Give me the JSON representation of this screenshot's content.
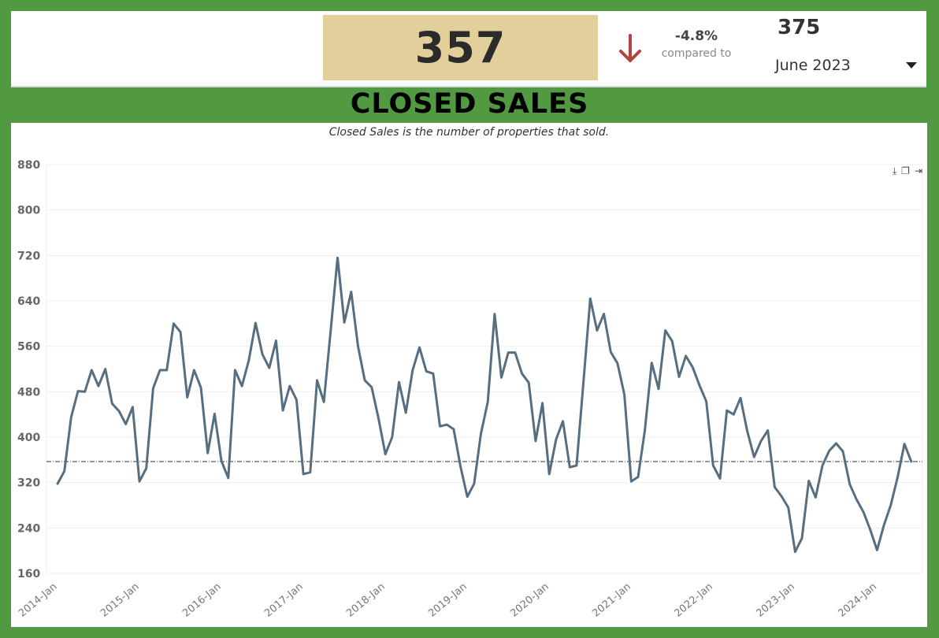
{
  "kpi": {
    "value": "357",
    "change_pct": "-4.8%",
    "change_label": "compared to",
    "compare_value": "375",
    "period": "June 2023",
    "down_color": "#b5443d",
    "value_box_color": "#e3cf9b"
  },
  "title": "CLOSED SALES",
  "subtitle": "Closed Sales is the number of properties that sold.",
  "toolbar": {
    "icons": [
      "download-icon",
      "copy-icon",
      "export-icon"
    ]
  },
  "colors": {
    "background": "#519a42",
    "line": "#566e80",
    "reference": "#333333"
  },
  "chart_data": {
    "type": "line",
    "title": "",
    "xlabel": "",
    "ylabel": "",
    "ylim": [
      160,
      880
    ],
    "yticks": [
      160,
      240,
      320,
      400,
      480,
      560,
      640,
      720,
      800,
      880
    ],
    "xtick_labels": [
      "2014-Jan",
      "2015-Jan",
      "2016-Jan",
      "2017-Jan",
      "2018-Jan",
      "2019-Jan",
      "2020-Jan",
      "2021-Jan",
      "2022-Jan",
      "2023-Jan",
      "2024-Jan"
    ],
    "grid": true,
    "reference_line": 357,
    "series": [
      {
        "values": [
          318,
          340,
          435,
          481,
          480,
          518,
          490,
          520,
          459,
          446,
          423,
          453,
          322,
          345,
          486,
          518,
          518,
          600,
          585,
          470,
          518,
          487,
          372,
          441,
          358,
          328,
          518,
          490,
          535,
          601,
          546,
          522,
          570,
          447,
          490,
          466,
          335,
          338,
          500,
          462,
          588,
          716,
          602,
          656,
          560,
          500,
          488,
          433,
          370,
          400,
          497,
          443,
          518,
          558,
          516,
          512,
          419,
          422,
          414,
          349,
          295,
          318,
          406,
          462,
          617,
          505,
          549,
          549,
          512,
          496,
          393,
          460,
          335,
          396,
          428,
          347,
          350,
          496,
          644,
          588,
          617,
          550,
          530,
          475,
          322,
          330,
          412,
          531,
          485,
          588,
          569,
          506,
          543,
          523,
          491,
          463,
          350,
          327,
          447,
          440,
          469,
          410,
          365,
          393,
          412,
          312,
          296,
          276,
          198,
          222,
          323,
          294,
          350,
          376,
          389,
          375,
          317,
          290,
          268,
          237,
          201,
          245,
          280,
          329,
          388,
          357
        ]
      }
    ]
  }
}
